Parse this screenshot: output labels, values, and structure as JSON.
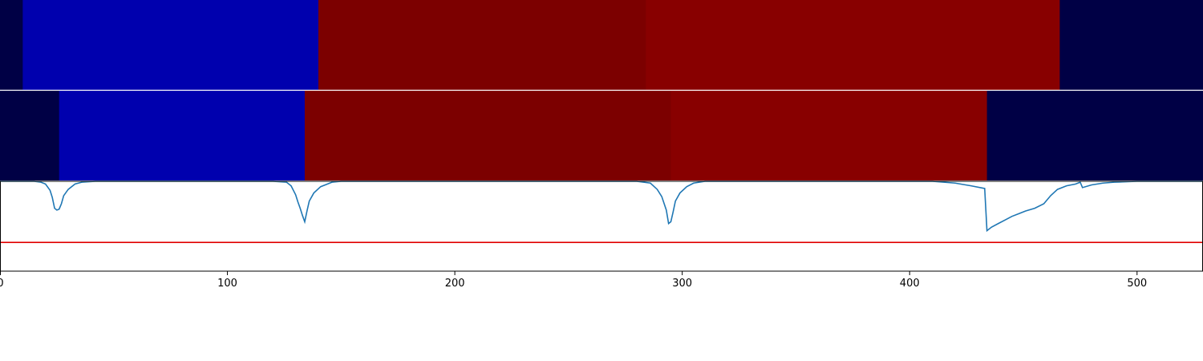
{
  "chart_data": {
    "type": "heatmap",
    "x_range": [
      0,
      529
    ],
    "x_ticks": [
      0,
      100,
      200,
      300,
      400,
      500
    ],
    "x_tick_labels": [
      "0",
      "100",
      "200",
      "300",
      "400",
      "500"
    ],
    "heatmap_tracks": [
      {
        "segments": [
          {
            "start": 0,
            "end": 10,
            "color": "#000045"
          },
          {
            "start": 10,
            "end": 140,
            "color": "#0000ae"
          },
          {
            "start": 140,
            "end": 284,
            "color": "#7c0000"
          },
          {
            "start": 284,
            "end": 466,
            "color": "#880000"
          },
          {
            "start": 466,
            "end": 529,
            "color": "#000045"
          }
        ]
      },
      {
        "segments": [
          {
            "start": 0,
            "end": 26,
            "color": "#000045"
          },
          {
            "start": 26,
            "end": 134,
            "color": "#0000ae"
          },
          {
            "start": 134,
            "end": 295,
            "color": "#7c0000"
          },
          {
            "start": 295,
            "end": 434,
            "color": "#880000"
          },
          {
            "start": 434,
            "end": 529,
            "color": "#000045"
          }
        ]
      }
    ],
    "line_panel": {
      "ylim": [
        0,
        1
      ],
      "threshold": 0.32,
      "threshold_color": "#e00000",
      "series_color": "#1f77b4",
      "series": [
        {
          "x": 0,
          "y": 1.0
        },
        {
          "x": 15,
          "y": 1.0
        },
        {
          "x": 18,
          "y": 0.99
        },
        {
          "x": 20,
          "y": 0.97
        },
        {
          "x": 22,
          "y": 0.9
        },
        {
          "x": 23,
          "y": 0.82
        },
        {
          "x": 24,
          "y": 0.7
        },
        {
          "x": 25,
          "y": 0.68
        },
        {
          "x": 26,
          "y": 0.69
        },
        {
          "x": 27,
          "y": 0.75
        },
        {
          "x": 28,
          "y": 0.84
        },
        {
          "x": 30,
          "y": 0.91
        },
        {
          "x": 33,
          "y": 0.97
        },
        {
          "x": 36,
          "y": 0.99
        },
        {
          "x": 42,
          "y": 1.0
        },
        {
          "x": 120,
          "y": 1.0
        },
        {
          "x": 126,
          "y": 0.99
        },
        {
          "x": 128,
          "y": 0.95
        },
        {
          "x": 130,
          "y": 0.85
        },
        {
          "x": 131,
          "y": 0.77
        },
        {
          "x": 132,
          "y": 0.7
        },
        {
          "x": 133,
          "y": 0.62
        },
        {
          "x": 134,
          "y": 0.55
        },
        {
          "x": 135,
          "y": 0.67
        },
        {
          "x": 136,
          "y": 0.78
        },
        {
          "x": 138,
          "y": 0.87
        },
        {
          "x": 141,
          "y": 0.94
        },
        {
          "x": 144,
          "y": 0.97
        },
        {
          "x": 146,
          "y": 0.99
        },
        {
          "x": 150,
          "y": 1.0
        },
        {
          "x": 280,
          "y": 1.0
        },
        {
          "x": 286,
          "y": 0.98
        },
        {
          "x": 289,
          "y": 0.91
        },
        {
          "x": 291,
          "y": 0.83
        },
        {
          "x": 293,
          "y": 0.68
        },
        {
          "x": 294,
          "y": 0.53
        },
        {
          "x": 295,
          "y": 0.55
        },
        {
          "x": 296,
          "y": 0.66
        },
        {
          "x": 297,
          "y": 0.78
        },
        {
          "x": 299,
          "y": 0.87
        },
        {
          "x": 302,
          "y": 0.94
        },
        {
          "x": 305,
          "y": 0.98
        },
        {
          "x": 310,
          "y": 1.0
        },
        {
          "x": 410,
          "y": 1.0
        },
        {
          "x": 420,
          "y": 0.98
        },
        {
          "x": 427,
          "y": 0.95
        },
        {
          "x": 433,
          "y": 0.92
        },
        {
          "x": 434,
          "y": 0.45
        },
        {
          "x": 436,
          "y": 0.49
        },
        {
          "x": 439,
          "y": 0.53
        },
        {
          "x": 442,
          "y": 0.57
        },
        {
          "x": 445,
          "y": 0.61
        },
        {
          "x": 448,
          "y": 0.64
        },
        {
          "x": 451,
          "y": 0.67
        },
        {
          "x": 455,
          "y": 0.7
        },
        {
          "x": 459,
          "y": 0.75
        },
        {
          "x": 462,
          "y": 0.84
        },
        {
          "x": 465,
          "y": 0.91
        },
        {
          "x": 469,
          "y": 0.95
        },
        {
          "x": 473,
          "y": 0.97
        },
        {
          "x": 475,
          "y": 0.99
        },
        {
          "x": 476,
          "y": 0.93
        },
        {
          "x": 480,
          "y": 0.96
        },
        {
          "x": 485,
          "y": 0.98
        },
        {
          "x": 490,
          "y": 0.99
        },
        {
          "x": 500,
          "y": 1.0
        },
        {
          "x": 529,
          "y": 1.0
        }
      ]
    }
  }
}
